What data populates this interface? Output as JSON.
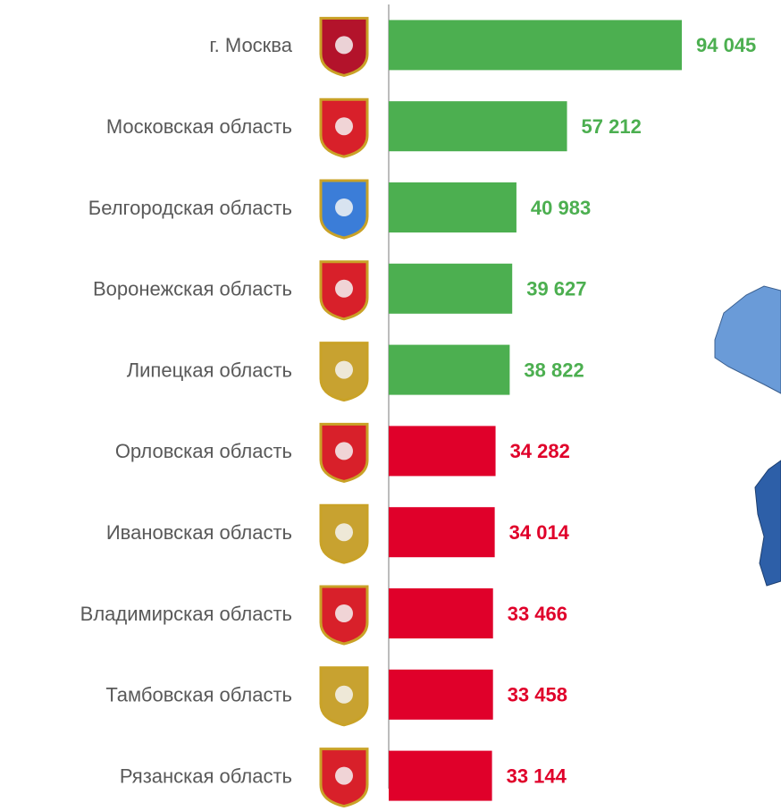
{
  "chart_data": {
    "type": "bar",
    "orientation": "horizontal",
    "categories": [
      "г. Москва",
      "Московская область",
      "Белгородская область",
      "Воронежская область",
      "Липецкая область",
      "Орловская область",
      "Ивановская область",
      "Владимирская область",
      "Тамбовская область",
      "Рязанская область"
    ],
    "values": [
      94045,
      57212,
      40983,
      39627,
      38822,
      34282,
      34014,
      33466,
      33458,
      33144
    ],
    "value_labels": [
      "94 045",
      "57 212",
      "40 983",
      "39 627",
      "38 822",
      "34 282",
      "34 014",
      "33 466",
      "33 458",
      "33 144"
    ],
    "colors": [
      "#4caf50",
      "#4caf50",
      "#4caf50",
      "#4caf50",
      "#4caf50",
      "#e0002a",
      "#e0002a",
      "#e0002a",
      "#e0002a",
      "#e0002a"
    ]
  }
}
